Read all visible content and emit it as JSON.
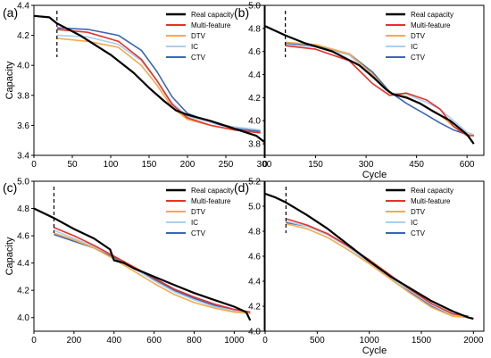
{
  "colors": {
    "real": "#000000",
    "multi": "#e8312a",
    "dtv": "#f5a94a",
    "ic": "#a9d0ef",
    "ctv": "#3a66b3"
  },
  "chart_data": [
    {
      "type": "line",
      "panel_label": "(a)",
      "xlabel": "",
      "ylabel": "Capacity",
      "xlim": [
        0,
        300
      ],
      "ylim": [
        3.4,
        4.4
      ],
      "xticks": [
        "0",
        "50",
        "100",
        "150",
        "200",
        "250",
        "300"
      ],
      "yticks": [
        "3.4",
        "3.6",
        "3.8",
        "4.0",
        "4.2",
        "4.4"
      ],
      "start_marker_x": 30,
      "legend": [
        "Real capacity",
        "Multi-feature",
        "DTV",
        "IC",
        "CTV"
      ],
      "series": [
        {
          "name": "Real capacity",
          "x": [
            0,
            20,
            30,
            60,
            100,
            130,
            150,
            170,
            185,
            200,
            230,
            260,
            290,
            300
          ],
          "y": [
            4.33,
            4.32,
            4.28,
            4.2,
            4.07,
            3.95,
            3.85,
            3.76,
            3.7,
            3.67,
            3.63,
            3.58,
            3.53,
            3.49
          ]
        },
        {
          "name": "Multi-feature",
          "x": [
            30,
            70,
            110,
            140,
            160,
            180,
            200,
            230,
            260,
            295
          ],
          "y": [
            4.24,
            4.22,
            4.16,
            4.04,
            3.9,
            3.74,
            3.65,
            3.6,
            3.57,
            3.55
          ]
        },
        {
          "name": "DTV",
          "x": [
            30,
            70,
            110,
            140,
            160,
            180,
            200,
            230,
            260,
            295
          ],
          "y": [
            4.18,
            4.16,
            4.12,
            4.0,
            3.87,
            3.72,
            3.64,
            3.6,
            3.57,
            3.55
          ]
        },
        {
          "name": "IC",
          "x": [
            30,
            70,
            110,
            140,
            160,
            180,
            200,
            230,
            260,
            295
          ],
          "y": [
            4.2,
            4.19,
            4.14,
            4.03,
            3.9,
            3.75,
            3.66,
            3.62,
            3.59,
            3.57
          ]
        },
        {
          "name": "CTV",
          "x": [
            30,
            70,
            110,
            140,
            160,
            180,
            200,
            230,
            260,
            295
          ],
          "y": [
            4.25,
            4.24,
            4.2,
            4.1,
            3.96,
            3.79,
            3.68,
            3.62,
            3.58,
            3.56
          ]
        }
      ]
    },
    {
      "type": "line",
      "panel_label": "(b)",
      "xlabel": "Cycle",
      "ylabel": "",
      "xlim": [
        0,
        650
      ],
      "ylim": [
        3.7,
        5.0
      ],
      "xticks": [
        "0",
        "150",
        "300",
        "450",
        "600"
      ],
      "yticks": [
        "3.8",
        "4.0",
        "4.2",
        "4.4",
        "4.6",
        "4.8",
        "5.0"
      ],
      "start_marker_x": 60,
      "legend": [
        "Real capacity",
        "Multi-feature",
        "DTV",
        "IC",
        "CTV"
      ],
      "series": [
        {
          "name": "Real capacity",
          "x": [
            0,
            60,
            120,
            200,
            280,
            320,
            360,
            380,
            420,
            460,
            500,
            550,
            600,
            620
          ],
          "y": [
            4.82,
            4.74,
            4.67,
            4.6,
            4.48,
            4.38,
            4.27,
            4.23,
            4.2,
            4.15,
            4.08,
            4.0,
            3.88,
            3.8
          ]
        },
        {
          "name": "Multi-feature",
          "x": [
            60,
            150,
            250,
            320,
            370,
            420,
            480,
            520,
            560,
            600,
            620
          ],
          "y": [
            4.65,
            4.62,
            4.52,
            4.32,
            4.22,
            4.24,
            4.18,
            4.1,
            3.95,
            3.87,
            3.87
          ]
        },
        {
          "name": "DTV",
          "x": [
            60,
            150,
            250,
            320,
            370,
            420,
            480,
            520,
            560,
            600,
            620
          ],
          "y": [
            4.68,
            4.66,
            4.58,
            4.4,
            4.24,
            4.21,
            4.12,
            4.05,
            3.95,
            3.88,
            3.87
          ]
        },
        {
          "name": "IC",
          "x": [
            60,
            150,
            250,
            320,
            370,
            420,
            480,
            520,
            560,
            600,
            620
          ],
          "y": [
            4.66,
            4.64,
            4.57,
            4.38,
            4.24,
            4.23,
            4.16,
            4.1,
            4.0,
            3.9,
            3.88
          ]
        },
        {
          "name": "CTV",
          "x": [
            60,
            150,
            250,
            320,
            370,
            420,
            480,
            520,
            560,
            600,
            620
          ],
          "y": [
            4.67,
            4.65,
            4.58,
            4.42,
            4.25,
            4.15,
            4.05,
            3.98,
            3.92,
            3.88,
            3.87
          ]
        }
      ]
    },
    {
      "type": "line",
      "panel_label": "(c)",
      "xlabel": "",
      "ylabel": "Capacity",
      "xlim": [
        0,
        1150
      ],
      "ylim": [
        3.9,
        5.0
      ],
      "xticks": [
        "0",
        "200",
        "400",
        "600",
        "800",
        "1000"
      ],
      "yticks": [
        "4.0",
        "4.2",
        "4.4",
        "4.6",
        "4.8",
        "5.0"
      ],
      "start_marker_x": 100,
      "legend": [
        "Real capacity",
        "Multi-feature",
        "DTV",
        "IC",
        "CTV"
      ],
      "series": [
        {
          "name": "Real capacity",
          "x": [
            0,
            100,
            200,
            300,
            380,
            400,
            450,
            500,
            600,
            700,
            800,
            900,
            1000,
            1060,
            1080
          ],
          "y": [
            4.8,
            4.73,
            4.65,
            4.58,
            4.5,
            4.42,
            4.4,
            4.36,
            4.3,
            4.24,
            4.18,
            4.13,
            4.08,
            4.04,
            3.98
          ]
        },
        {
          "name": "Multi-feature",
          "x": [
            100,
            200,
            300,
            400,
            500,
            600,
            700,
            800,
            900,
            1000,
            1080
          ],
          "y": [
            4.66,
            4.6,
            4.53,
            4.45,
            4.37,
            4.29,
            4.21,
            4.15,
            4.1,
            4.06,
            4.04
          ]
        },
        {
          "name": "DTV",
          "x": [
            100,
            200,
            300,
            400,
            500,
            600,
            700,
            800,
            900,
            1000,
            1080
          ],
          "y": [
            4.62,
            4.57,
            4.51,
            4.43,
            4.34,
            4.25,
            4.17,
            4.11,
            4.07,
            4.04,
            4.03
          ]
        },
        {
          "name": "IC",
          "x": [
            100,
            200,
            300,
            400,
            500,
            600,
            700,
            800,
            900,
            1000,
            1080
          ],
          "y": [
            4.64,
            4.58,
            4.52,
            4.45,
            4.36,
            4.27,
            4.19,
            4.13,
            4.08,
            4.05,
            4.04
          ]
        },
        {
          "name": "CTV",
          "x": [
            100,
            200,
            300,
            400,
            500,
            600,
            700,
            800,
            900,
            1000,
            1080
          ],
          "y": [
            4.61,
            4.56,
            4.51,
            4.44,
            4.36,
            4.28,
            4.2,
            4.14,
            4.09,
            4.05,
            4.04
          ]
        }
      ]
    },
    {
      "type": "line",
      "panel_label": "(d)",
      "xlabel": "Cycle",
      "ylabel": "",
      "xlim": [
        0,
        2100
      ],
      "ylim": [
        4.0,
        5.2
      ],
      "xticks": [
        "0",
        "500",
        "1000",
        "1500",
        "2000"
      ],
      "yticks": [
        "4.0",
        "4.2",
        "4.4",
        "4.6",
        "4.8",
        "5.0",
        "5.2"
      ],
      "start_marker_x": 200,
      "legend": [
        "Real capacity",
        "Multi-feature",
        "DTV",
        "IC",
        "CTV"
      ],
      "series": [
        {
          "name": "Real capacity",
          "x": [
            0,
            100,
            200,
            400,
            600,
            800,
            1000,
            1200,
            1400,
            1600,
            1800,
            1950,
            2000
          ],
          "y": [
            5.1,
            5.07,
            5.03,
            4.93,
            4.82,
            4.69,
            4.56,
            4.44,
            4.34,
            4.24,
            4.16,
            4.11,
            4.1
          ]
        },
        {
          "name": "Multi-feature",
          "x": [
            200,
            400,
            600,
            800,
            1000,
            1200,
            1400,
            1600,
            1800,
            1950
          ],
          "y": [
            4.9,
            4.85,
            4.78,
            4.68,
            4.57,
            4.45,
            4.33,
            4.22,
            4.14,
            4.12
          ]
        },
        {
          "name": "DTV",
          "x": [
            200,
            400,
            600,
            800,
            1000,
            1200,
            1400,
            1600,
            1800,
            1950
          ],
          "y": [
            4.86,
            4.82,
            4.75,
            4.65,
            4.54,
            4.42,
            4.3,
            4.19,
            4.12,
            4.11
          ]
        },
        {
          "name": "IC",
          "x": [
            200,
            400,
            600,
            800,
            1000,
            1200,
            1400,
            1600,
            1800,
            1950
          ],
          "y": [
            4.88,
            4.84,
            4.77,
            4.67,
            4.55,
            4.43,
            4.32,
            4.21,
            4.13,
            4.12
          ]
        },
        {
          "name": "CTV",
          "x": [
            200,
            400,
            600,
            800,
            1000,
            1200,
            1400,
            1600,
            1800,
            1950
          ],
          "y": [
            4.87,
            4.84,
            4.78,
            4.68,
            4.57,
            4.44,
            4.31,
            4.2,
            4.13,
            4.12
          ]
        }
      ]
    }
  ]
}
